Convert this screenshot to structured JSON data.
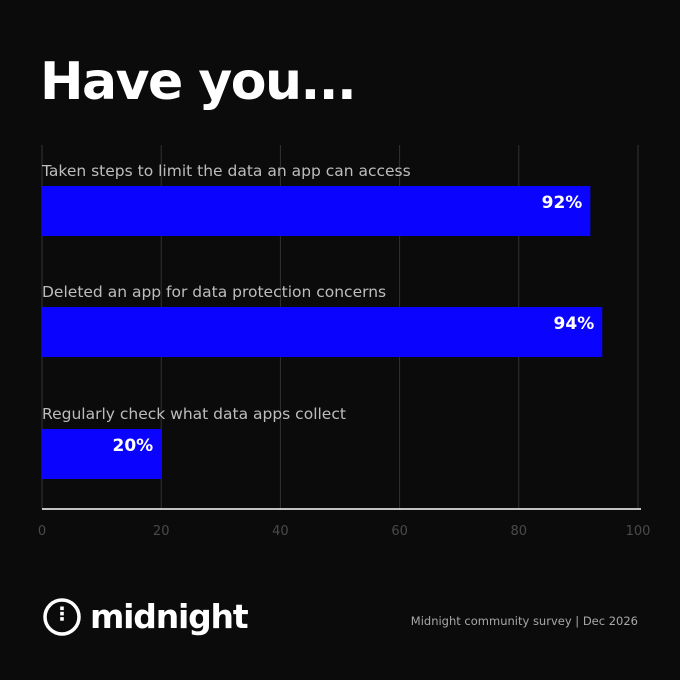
{
  "title": "Have you...",
  "colors": {
    "background": "#0b0b0b",
    "bar": "#0a04ff",
    "grid": "#333333",
    "axis": "#ffffff",
    "label": "#bdbdbd",
    "tick": "#4a4a4a"
  },
  "chart_data": {
    "type": "bar",
    "orientation": "horizontal",
    "title": "Have you...",
    "categories": [
      "Taken steps to limit the data an app can access",
      "Deleted an app for data protection concerns",
      "Regularly check what data apps collect"
    ],
    "values": [
      92,
      94,
      20
    ],
    "value_labels": [
      "92%",
      "94%",
      "20%"
    ],
    "xlim": [
      0,
      100
    ],
    "x_ticks": [
      "0",
      "20",
      "40",
      "60",
      "80",
      "100"
    ],
    "grid": true
  },
  "brand": {
    "name": "midnight",
    "logo_icon": "midnight-logo-icon"
  },
  "footer": {
    "source": "Midnight community survey | Dec 2026"
  }
}
